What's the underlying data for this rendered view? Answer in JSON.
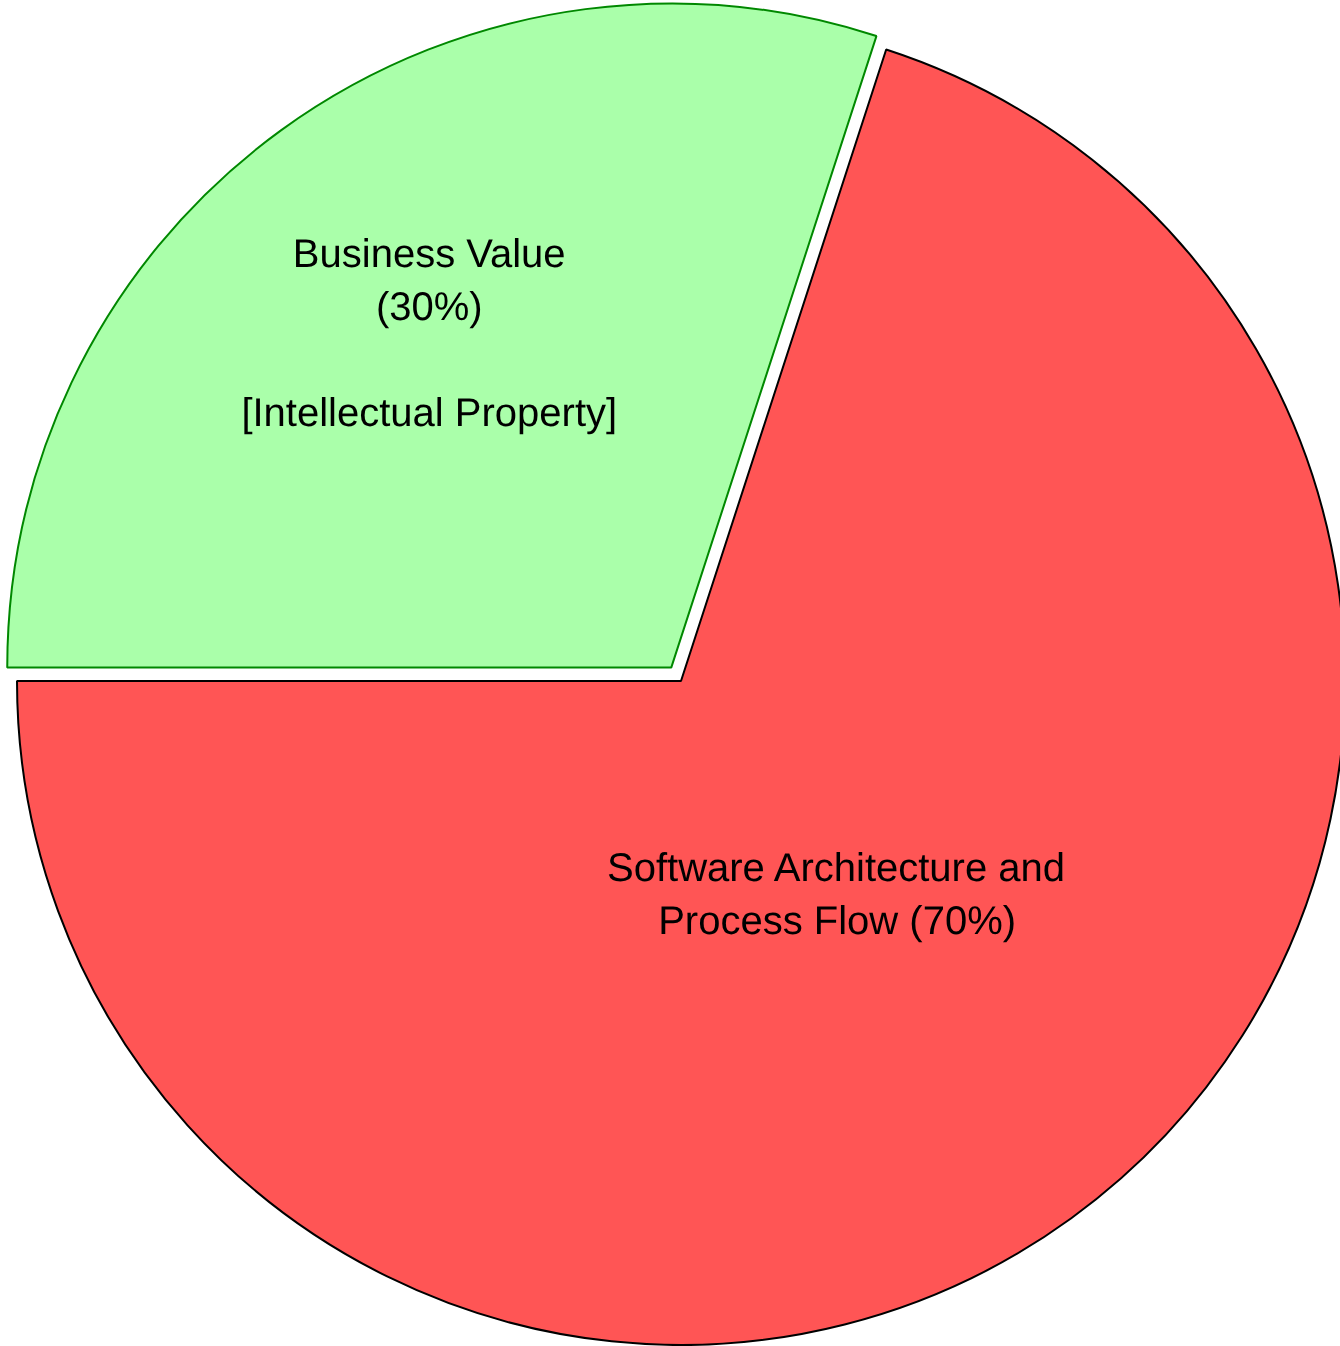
{
  "chart_data": {
    "type": "pie",
    "categories": [
      "Business Value\n(30%)\n\n[Intellectual Property]",
      "Software Architecture and\nProcess Flow (70%)"
    ],
    "values": [
      30,
      70
    ],
    "colors": [
      "#aaffaa",
      "#ff5555"
    ]
  }
}
